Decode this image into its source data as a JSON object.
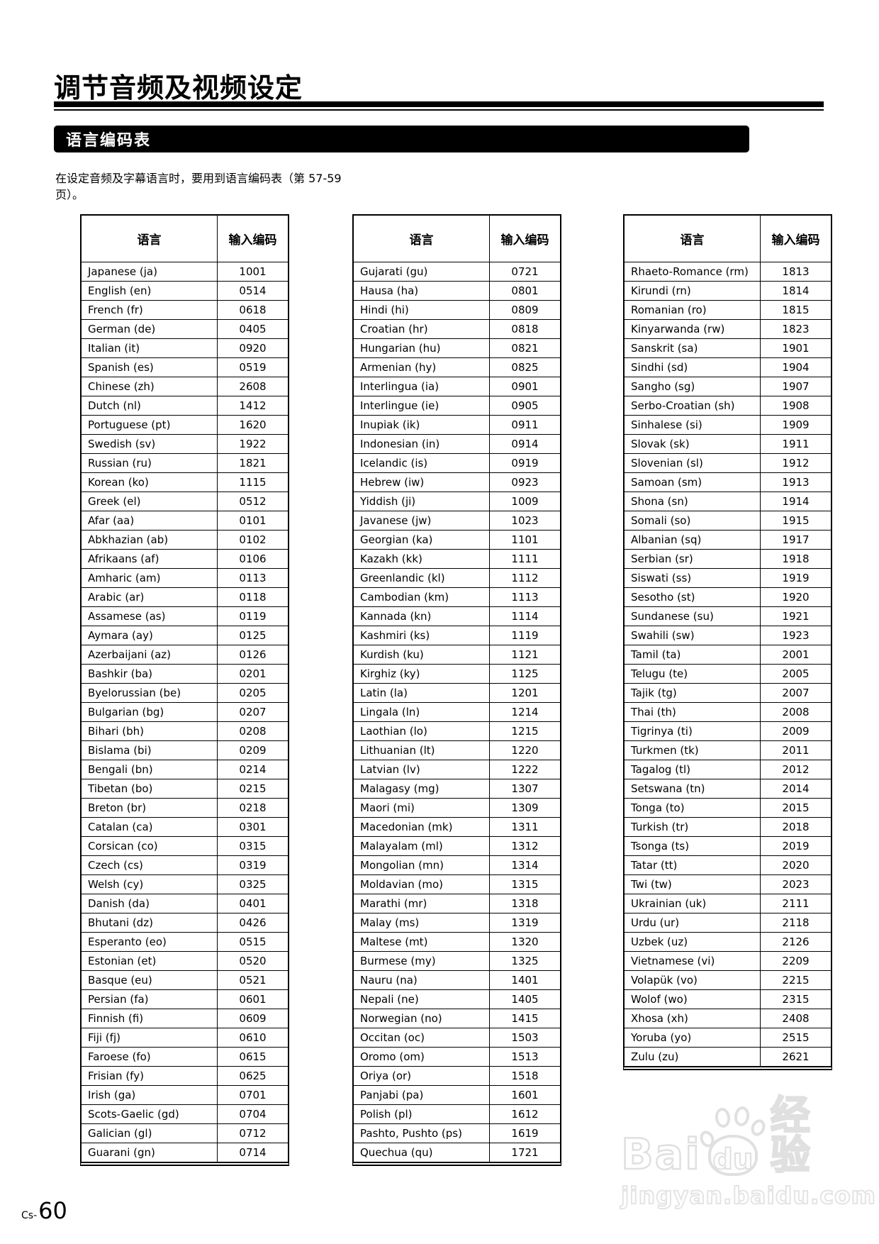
{
  "page": {
    "title": "调节音频及视频设定",
    "section": {
      "title": "语言编码表"
    },
    "intro": {
      "line1": "在设定音频及字幕语言时，要用到语言编码表（第 57-59",
      "line2": "页）。"
    },
    "footer": {
      "page_prefix": "Cs-",
      "page_number": "60"
    }
  },
  "table_header": {
    "language": "语言",
    "code": "输入编码"
  },
  "tables": [
    {
      "rows": [
        [
          "Japanese (ja)",
          "1001"
        ],
        [
          "English (en)",
          "0514"
        ],
        [
          "French (fr)",
          "0618"
        ],
        [
          "German (de)",
          "0405"
        ],
        [
          "Italian (it)",
          "0920"
        ],
        [
          "Spanish (es)",
          "0519"
        ],
        [
          "Chinese (zh)",
          "2608"
        ],
        [
          "Dutch (nl)",
          "1412"
        ],
        [
          "Portuguese (pt)",
          "1620"
        ],
        [
          "Swedish (sv)",
          "1922"
        ],
        [
          "Russian (ru)",
          "1821"
        ],
        [
          "Korean (ko)",
          "1115"
        ],
        [
          "Greek (el)",
          "0512"
        ],
        [
          "Afar (aa)",
          "0101"
        ],
        [
          "Abkhazian (ab)",
          "0102"
        ],
        [
          "Afrikaans (af)",
          "0106"
        ],
        [
          "Amharic (am)",
          "0113"
        ],
        [
          "Arabic (ar)",
          "0118"
        ],
        [
          "Assamese (as)",
          "0119"
        ],
        [
          "Aymara (ay)",
          "0125"
        ],
        [
          "Azerbaijani (az)",
          "0126"
        ],
        [
          "Bashkir (ba)",
          "0201"
        ],
        [
          "Byelorussian (be)",
          "0205"
        ],
        [
          "Bulgarian (bg)",
          "0207"
        ],
        [
          "Bihari (bh)",
          "0208"
        ],
        [
          "Bislama (bi)",
          "0209"
        ],
        [
          "Bengali (bn)",
          "0214"
        ],
        [
          "Tibetan (bo)",
          "0215"
        ],
        [
          "Breton (br)",
          "0218"
        ],
        [
          "Catalan (ca)",
          "0301"
        ],
        [
          "Corsican (co)",
          "0315"
        ],
        [
          "Czech (cs)",
          "0319"
        ],
        [
          "Welsh (cy)",
          "0325"
        ],
        [
          "Danish (da)",
          "0401"
        ],
        [
          "Bhutani (dz)",
          "0426"
        ],
        [
          "Esperanto (eo)",
          "0515"
        ],
        [
          "Estonian (et)",
          "0520"
        ],
        [
          "Basque (eu)",
          "0521"
        ],
        [
          "Persian (fa)",
          "0601"
        ],
        [
          "Finnish (fi)",
          "0609"
        ],
        [
          "Fiji (fj)",
          "0610"
        ],
        [
          "Faroese (fo)",
          "0615"
        ],
        [
          "Frisian (fy)",
          "0625"
        ],
        [
          "Irish (ga)",
          "0701"
        ],
        [
          "Scots-Gaelic (gd)",
          "0704"
        ],
        [
          "Galician (gl)",
          "0712"
        ],
        [
          "Guarani (gn)",
          "0714"
        ]
      ]
    },
    {
      "rows": [
        [
          "Gujarati (gu)",
          "0721"
        ],
        [
          "Hausa (ha)",
          "0801"
        ],
        [
          "Hindi (hi)",
          "0809"
        ],
        [
          "Croatian (hr)",
          "0818"
        ],
        [
          "Hungarian (hu)",
          "0821"
        ],
        [
          "Armenian (hy)",
          "0825"
        ],
        [
          "Interlingua (ia)",
          "0901"
        ],
        [
          "Interlingue (ie)",
          "0905"
        ],
        [
          "Inupiak (ik)",
          "0911"
        ],
        [
          "Indonesian (in)",
          "0914"
        ],
        [
          "Icelandic (is)",
          "0919"
        ],
        [
          "Hebrew (iw)",
          "0923"
        ],
        [
          "Yiddish (ji)",
          "1009"
        ],
        [
          "Javanese (jw)",
          "1023"
        ],
        [
          "Georgian (ka)",
          "1101"
        ],
        [
          "Kazakh (kk)",
          "1111"
        ],
        [
          "Greenlandic (kl)",
          "1112"
        ],
        [
          "Cambodian (km)",
          "1113"
        ],
        [
          "Kannada (kn)",
          "1114"
        ],
        [
          "Kashmiri (ks)",
          "1119"
        ],
        [
          "Kurdish (ku)",
          "1121"
        ],
        [
          "Kirghiz (ky)",
          "1125"
        ],
        [
          "Latin (la)",
          "1201"
        ],
        [
          "Lingala (ln)",
          "1214"
        ],
        [
          "Laothian (lo)",
          "1215"
        ],
        [
          "Lithuanian (lt)",
          "1220"
        ],
        [
          "Latvian (lv)",
          "1222"
        ],
        [
          "Malagasy (mg)",
          "1307"
        ],
        [
          "Maori (mi)",
          "1309"
        ],
        [
          "Macedonian (mk)",
          "1311"
        ],
        [
          "Malayalam (ml)",
          "1312"
        ],
        [
          "Mongolian (mn)",
          "1314"
        ],
        [
          "Moldavian (mo)",
          "1315"
        ],
        [
          "Marathi (mr)",
          "1318"
        ],
        [
          "Malay (ms)",
          "1319"
        ],
        [
          "Maltese (mt)",
          "1320"
        ],
        [
          "Burmese (my)",
          "1325"
        ],
        [
          "Nauru (na)",
          "1401"
        ],
        [
          "Nepali (ne)",
          "1405"
        ],
        [
          "Norwegian (no)",
          "1415"
        ],
        [
          "Occitan (oc)",
          "1503"
        ],
        [
          "Oromo (om)",
          "1513"
        ],
        [
          "Oriya (or)",
          "1518"
        ],
        [
          "Panjabi (pa)",
          "1601"
        ],
        [
          "Polish (pl)",
          "1612"
        ],
        [
          "Pashto, Pushto (ps)",
          "1619"
        ],
        [
          "Quechua (qu)",
          "1721"
        ]
      ]
    },
    {
      "rows": [
        [
          "Rhaeto-Romance (rm)",
          "1813"
        ],
        [
          "Kirundi (rn)",
          "1814"
        ],
        [
          "Romanian (ro)",
          "1815"
        ],
        [
          "Kinyarwanda (rw)",
          "1823"
        ],
        [
          "Sanskrit (sa)",
          "1901"
        ],
        [
          "Sindhi (sd)",
          "1904"
        ],
        [
          "Sangho (sg)",
          "1907"
        ],
        [
          "Serbo-Croatian (sh)",
          "1908"
        ],
        [
          "Sinhalese (si)",
          "1909"
        ],
        [
          "Slovak (sk)",
          "1911"
        ],
        [
          "Slovenian (sl)",
          "1912"
        ],
        [
          "Samoan (sm)",
          "1913"
        ],
        [
          "Shona (sn)",
          "1914"
        ],
        [
          "Somali (so)",
          "1915"
        ],
        [
          "Albanian (sq)",
          "1917"
        ],
        [
          "Serbian (sr)",
          "1918"
        ],
        [
          "Siswati (ss)",
          "1919"
        ],
        [
          "Sesotho (st)",
          "1920"
        ],
        [
          "Sundanese (su)",
          "1921"
        ],
        [
          "Swahili (sw)",
          "1923"
        ],
        [
          "Tamil (ta)",
          "2001"
        ],
        [
          "Telugu (te)",
          "2005"
        ],
        [
          "Tajik (tg)",
          "2007"
        ],
        [
          "Thai (th)",
          "2008"
        ],
        [
          "Tigrinya (ti)",
          "2009"
        ],
        [
          "Turkmen (tk)",
          "2011"
        ],
        [
          "Tagalog (tl)",
          "2012"
        ],
        [
          "Setswana (tn)",
          "2014"
        ],
        [
          "Tonga (to)",
          "2015"
        ],
        [
          "Turkish (tr)",
          "2018"
        ],
        [
          "Tsonga (ts)",
          "2019"
        ],
        [
          "Tatar (tt)",
          "2020"
        ],
        [
          "Twi (tw)",
          "2023"
        ],
        [
          "Ukrainian (uk)",
          "2111"
        ],
        [
          "Urdu (ur)",
          "2118"
        ],
        [
          "Uzbek (uz)",
          "2126"
        ],
        [
          "Vietnamese (vi)",
          "2209"
        ],
        [
          "Volapük (vo)",
          "2215"
        ],
        [
          "Wolof (wo)",
          "2315"
        ],
        [
          "Xhosa (xh)",
          "2408"
        ],
        [
          "Yoruba (yo)",
          "2515"
        ],
        [
          "Zulu (zu)",
          "2621"
        ]
      ]
    }
  ],
  "watermark": {
    "bai": "Bai",
    "du": "du",
    "suffix": "经验",
    "url": "jingyan.baidu.com"
  },
  "colors": {
    "section_bar_bg": "#000000",
    "text": "#000000",
    "watermark_stroke": "#e0e0e0"
  }
}
